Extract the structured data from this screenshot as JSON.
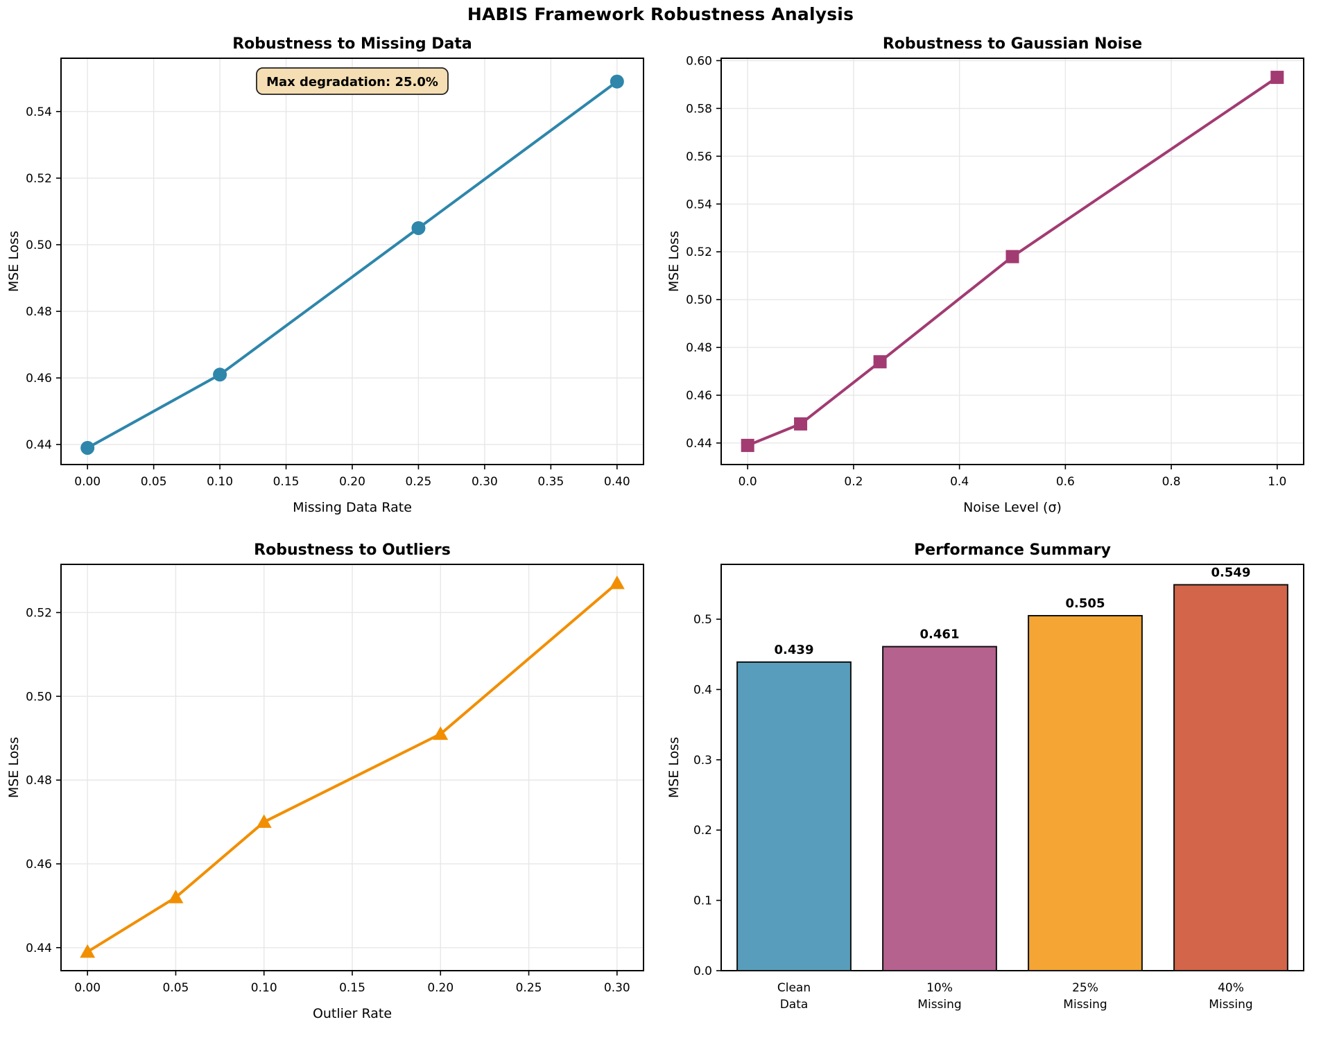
{
  "suptitle": "HABIS Framework Robustness Analysis",
  "colors": {
    "blue": "#2E86AB",
    "magenta": "#A23B72",
    "orange": "#F18F01",
    "red": "#C73E1D",
    "grid": "#E7E7E7",
    "spine": "#000000",
    "annotation_bg": "#F5DEB3",
    "bar_edge": "#111111"
  },
  "chart_data": [
    {
      "type": "line",
      "id": "missing-data",
      "title": "Robustness to Missing Data",
      "xlabel": "Missing Data Rate",
      "ylabel": "MSE Loss",
      "color": "#2E86AB",
      "marker": "circle",
      "x": [
        0.0,
        0.1,
        0.25,
        0.4
      ],
      "y": [
        0.439,
        0.461,
        0.505,
        0.549
      ],
      "xlim": [
        -0.02,
        0.42
      ],
      "ylim": [
        0.434,
        0.556
      ],
      "xticks": [
        0.0,
        0.05,
        0.1,
        0.15,
        0.2,
        0.25,
        0.3,
        0.35,
        0.4
      ],
      "xtick_labels": [
        "0.00",
        "0.05",
        "0.10",
        "0.15",
        "0.20",
        "0.25",
        "0.30",
        "0.35",
        "0.40"
      ],
      "yticks": [
        0.44,
        0.46,
        0.48,
        0.5,
        0.52,
        0.54
      ],
      "ytick_labels": [
        "0.44",
        "0.46",
        "0.48",
        "0.50",
        "0.52",
        "0.54"
      ],
      "grid": true,
      "annotation": {
        "text": "Max degradation: 25.0%",
        "bg": "#F5DEB3"
      }
    },
    {
      "type": "line",
      "id": "gaussian-noise",
      "title": "Robustness to Gaussian Noise",
      "xlabel": "Noise Level (σ)",
      "ylabel": "MSE Loss",
      "color": "#A23B72",
      "marker": "square",
      "x": [
        0.0,
        0.1,
        0.25,
        0.5,
        1.0
      ],
      "y": [
        0.439,
        0.448,
        0.474,
        0.518,
        0.593
      ],
      "xlim": [
        -0.05,
        1.05
      ],
      "ylim": [
        0.431,
        0.601
      ],
      "xticks": [
        0.0,
        0.2,
        0.4,
        0.6,
        0.8,
        1.0
      ],
      "xtick_labels": [
        "0.0",
        "0.2",
        "0.4",
        "0.6",
        "0.8",
        "1.0"
      ],
      "yticks": [
        0.44,
        0.46,
        0.48,
        0.5,
        0.52,
        0.54,
        0.56,
        0.58,
        0.6
      ],
      "ytick_labels": [
        "0.44",
        "0.46",
        "0.48",
        "0.50",
        "0.52",
        "0.54",
        "0.56",
        "0.58",
        "0.60"
      ],
      "grid": true
    },
    {
      "type": "line",
      "id": "outliers",
      "title": "Robustness to Outliers",
      "xlabel": "Outlier Rate",
      "ylabel": "MSE Loss",
      "color": "#F18F01",
      "marker": "triangle",
      "x": [
        0.0,
        0.05,
        0.1,
        0.2,
        0.3
      ],
      "y": [
        0.439,
        0.452,
        0.47,
        0.491,
        0.527
      ],
      "xlim": [
        -0.015,
        0.315
      ],
      "ylim": [
        0.4345,
        0.5315
      ],
      "xticks": [
        0.0,
        0.05,
        0.1,
        0.15,
        0.2,
        0.25,
        0.3
      ],
      "xtick_labels": [
        "0.00",
        "0.05",
        "0.10",
        "0.15",
        "0.20",
        "0.25",
        "0.30"
      ],
      "yticks": [
        0.44,
        0.46,
        0.48,
        0.5,
        0.52
      ],
      "ytick_labels": [
        "0.44",
        "0.46",
        "0.48",
        "0.50",
        "0.52"
      ],
      "grid": true
    },
    {
      "type": "bar",
      "id": "performance-summary",
      "title": "Performance Summary",
      "xlabel": "",
      "ylabel": "MSE Loss",
      "categories": [
        [
          "Clean",
          "Data"
        ],
        [
          "10%",
          "Missing"
        ],
        [
          "25%",
          "Missing"
        ],
        [
          "40%",
          "Missing"
        ]
      ],
      "values": [
        0.439,
        0.461,
        0.505,
        0.549
      ],
      "value_labels": [
        "0.439",
        "0.461",
        "0.505",
        "0.549"
      ],
      "bar_colors": [
        "#589EBC",
        "#B5628E",
        "#F4A534",
        "#D2654A"
      ],
      "ylim": [
        0,
        0.578
      ],
      "yticks": [
        0.0,
        0.1,
        0.2,
        0.3,
        0.4,
        0.5
      ],
      "ytick_labels": [
        "0.0",
        "0.1",
        "0.2",
        "0.3",
        "0.4",
        "0.5"
      ],
      "grid": false
    }
  ]
}
